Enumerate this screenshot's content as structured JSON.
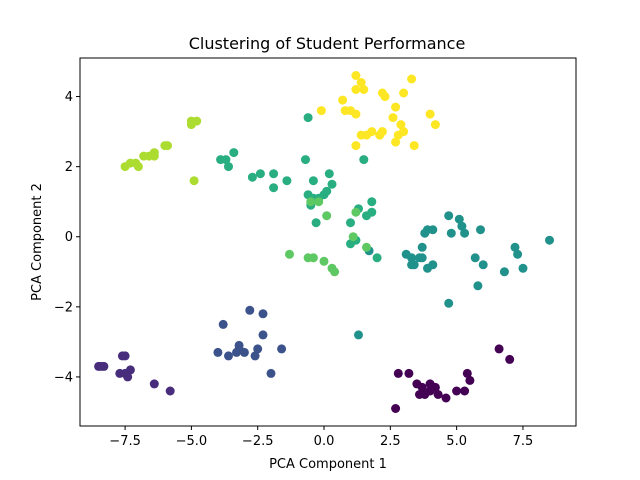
{
  "chart_data": {
    "type": "scatter",
    "title": "Clustering of Student Performance",
    "xlabel": "PCA Component 1",
    "ylabel": "PCA Component 2",
    "xlim": [
      -9.2,
      9.5
    ],
    "ylim": [
      -5.4,
      5.1
    ],
    "x_ticks": [
      -7.5,
      -5.0,
      -2.5,
      0.0,
      2.5,
      5.0,
      7.5
    ],
    "x_tick_labels": [
      "−7.5",
      "−5.0",
      "−2.5",
      "0.0",
      "2.5",
      "5.0",
      "7.5"
    ],
    "y_ticks": [
      -4,
      -2,
      0,
      2,
      4
    ],
    "y_tick_labels": [
      "−4",
      "−2",
      "0",
      "2",
      "4"
    ],
    "grid": false,
    "colormap": "viridis",
    "series": [
      {
        "color": "#440154",
        "points": [
          [
            2.8,
            -3.9
          ],
          [
            3.2,
            -3.9
          ],
          [
            3.5,
            -4.2
          ],
          [
            3.7,
            -4.3
          ],
          [
            3.8,
            -4.5
          ],
          [
            4.0,
            -4.4
          ],
          [
            3.6,
            -4.5
          ],
          [
            4.2,
            -4.3
          ],
          [
            4.3,
            -4.5
          ],
          [
            4.6,
            -4.6
          ],
          [
            5.0,
            -4.4
          ],
          [
            5.3,
            -4.4
          ],
          [
            5.5,
            -4.1
          ],
          [
            5.4,
            -3.9
          ],
          [
            6.6,
            -3.2
          ],
          [
            7.0,
            -3.5
          ],
          [
            2.7,
            -4.9
          ],
          [
            4.0,
            -4.2
          ]
        ]
      },
      {
        "color": "#472d7b",
        "points": [
          [
            -8.5,
            -3.7
          ],
          [
            -8.3,
            -3.7
          ],
          [
            -7.6,
            -3.4
          ],
          [
            -7.5,
            -3.4
          ],
          [
            -7.3,
            -3.8
          ],
          [
            -7.7,
            -3.9
          ],
          [
            -7.5,
            -3.9
          ],
          [
            -7.4,
            -4.0
          ],
          [
            -6.4,
            -4.2
          ],
          [
            -5.8,
            -4.4
          ],
          [
            -8.4,
            -3.7
          ]
        ]
      },
      {
        "color": "#3b528b",
        "points": [
          [
            -3.8,
            -2.5
          ],
          [
            -4.0,
            -3.3
          ],
          [
            -3.6,
            -3.4
          ],
          [
            -3.3,
            -3.3
          ],
          [
            -3.2,
            -3.2
          ],
          [
            -3.0,
            -3.3
          ],
          [
            -2.8,
            -2.1
          ],
          [
            -2.6,
            -3.4
          ],
          [
            -2.5,
            -3.2
          ],
          [
            -2.3,
            -2.8
          ],
          [
            -2.3,
            -2.2
          ],
          [
            -2.0,
            -3.9
          ],
          [
            -1.6,
            -3.2
          ],
          [
            -3.2,
            -3.1
          ]
        ]
      },
      {
        "color": "#21918c",
        "points": [
          [
            4.7,
            0.6
          ],
          [
            5.1,
            0.5
          ],
          [
            5.2,
            0.3
          ],
          [
            4.8,
            0.1
          ],
          [
            5.3,
            0.1
          ],
          [
            4.1,
            0.2
          ],
          [
            3.8,
            0.1
          ],
          [
            3.9,
            0.2
          ],
          [
            3.7,
            -0.3
          ],
          [
            3.1,
            -0.5
          ],
          [
            3.3,
            -0.6
          ],
          [
            3.4,
            -0.8
          ],
          [
            3.6,
            -0.6
          ],
          [
            3.7,
            -0.6
          ],
          [
            3.9,
            -0.9
          ],
          [
            4.1,
            -0.8
          ],
          [
            3.3,
            -0.8
          ],
          [
            5.9,
            0.2
          ],
          [
            5.7,
            -0.6
          ],
          [
            6.0,
            -0.8
          ],
          [
            5.8,
            -1.4
          ],
          [
            6.8,
            -1.0
          ],
          [
            7.2,
            -0.3
          ],
          [
            7.3,
            -0.5
          ],
          [
            7.5,
            -0.9
          ],
          [
            8.5,
            -0.1
          ],
          [
            4.7,
            -1.9
          ],
          [
            1.3,
            -2.8
          ],
          [
            1.7,
            -0.4
          ]
        ]
      },
      {
        "color": "#28ae80",
        "points": [
          [
            -3.9,
            2.2
          ],
          [
            -3.7,
            2.2
          ],
          [
            -3.6,
            2.0
          ],
          [
            -3.4,
            2.4
          ],
          [
            -2.7,
            1.7
          ],
          [
            -2.4,
            1.8
          ],
          [
            -1.9,
            1.8
          ],
          [
            -1.9,
            1.4
          ],
          [
            -1.4,
            1.6
          ],
          [
            -0.7,
            2.2
          ],
          [
            -0.6,
            3.4
          ],
          [
            -0.6,
            1.2
          ],
          [
            -0.4,
            1.1
          ],
          [
            -0.2,
            1.1
          ],
          [
            0.0,
            1.2
          ],
          [
            0.1,
            1.3
          ],
          [
            0.3,
            1.5
          ],
          [
            0.2,
            1.8
          ],
          [
            -0.4,
            1.6
          ],
          [
            -0.3,
            0.4
          ],
          [
            -0.5,
            0.9
          ],
          [
            1.0,
            0.4
          ],
          [
            1.3,
            0.8
          ],
          [
            1.6,
            0.6
          ],
          [
            1.8,
            0.7
          ],
          [
            1.8,
            1.0
          ],
          [
            1.5,
            2.2
          ],
          [
            1.0,
            -0.2
          ],
          [
            1.2,
            -0.1
          ],
          [
            2.0,
            -0.6
          ]
        ]
      },
      {
        "color": "#5ec962",
        "points": [
          [
            -1.3,
            -0.5
          ],
          [
            -0.6,
            -0.6
          ],
          [
            -0.4,
            -0.6
          ],
          [
            0.0,
            -0.7
          ],
          [
            0.3,
            -0.9
          ],
          [
            0.4,
            -1.0
          ],
          [
            1.1,
            0.0
          ],
          [
            1.6,
            -0.3
          ],
          [
            1.2,
            0.7
          ],
          [
            0.1,
            0.6
          ],
          [
            -0.2,
            1.0
          ],
          [
            -0.5,
            1.0
          ]
        ]
      },
      {
        "color": "#addc30",
        "points": [
          [
            -7.5,
            2.0
          ],
          [
            -7.3,
            2.1
          ],
          [
            -7.1,
            2.1
          ],
          [
            -7.0,
            2.0
          ],
          [
            -6.8,
            2.3
          ],
          [
            -6.6,
            2.3
          ],
          [
            -6.4,
            2.4
          ],
          [
            -6.4,
            2.3
          ],
          [
            -6.0,
            2.6
          ],
          [
            -5.9,
            2.6
          ],
          [
            -5.0,
            3.2
          ],
          [
            -5.0,
            3.3
          ],
          [
            -4.9,
            1.6
          ],
          [
            -4.8,
            3.3
          ]
        ]
      },
      {
        "color": "#fde725",
        "points": [
          [
            1.2,
            4.6
          ],
          [
            1.4,
            4.4
          ],
          [
            1.5,
            4.2
          ],
          [
            1.2,
            4.2
          ],
          [
            2.2,
            4.1
          ],
          [
            2.3,
            4.0
          ],
          [
            3.3,
            4.5
          ],
          [
            3.0,
            4.1
          ],
          [
            2.7,
            3.7
          ],
          [
            2.6,
            3.4
          ],
          [
            2.9,
            3.2
          ],
          [
            2.8,
            2.9
          ],
          [
            3.0,
            3.0
          ],
          [
            3.4,
            2.6
          ],
          [
            2.7,
            2.7
          ],
          [
            2.2,
            3.0
          ],
          [
            2.1,
            2.9
          ],
          [
            1.8,
            3.0
          ],
          [
            1.6,
            2.9
          ],
          [
            1.4,
            2.9
          ],
          [
            1.0,
            3.6
          ],
          [
            1.2,
            3.5
          ],
          [
            0.8,
            3.6
          ],
          [
            0.7,
            3.9
          ],
          [
            -0.1,
            3.6
          ],
          [
            4.0,
            3.5
          ],
          [
            4.2,
            3.2
          ],
          [
            1.2,
            2.6
          ]
        ]
      }
    ]
  }
}
